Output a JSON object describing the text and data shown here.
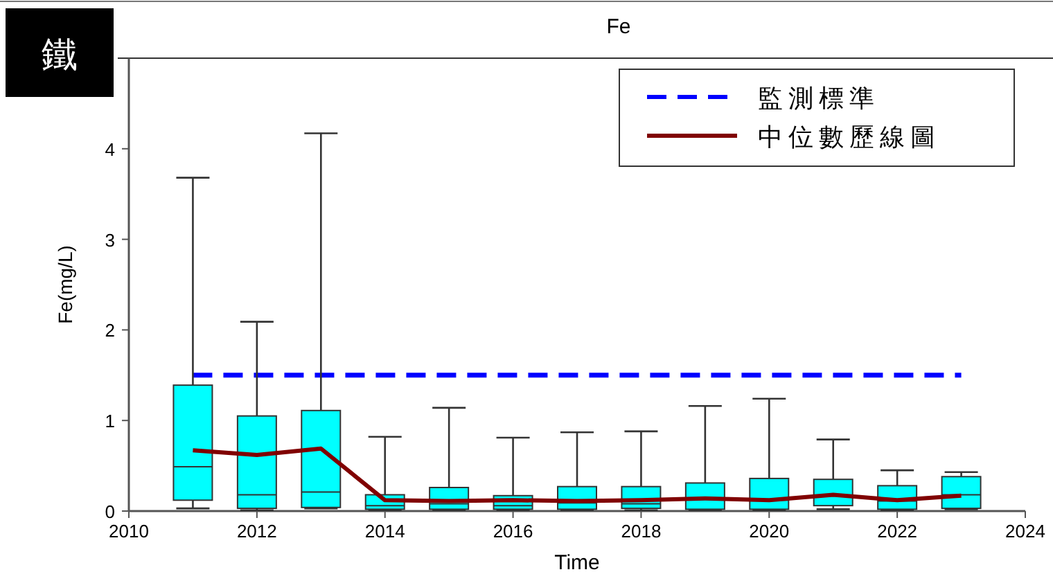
{
  "chart_data": {
    "type": "box",
    "title": "Fe",
    "xlabel": "Time",
    "ylabel": "Fe(mg/L)",
    "annotations": [
      "鐵"
    ],
    "x": [
      2011,
      2012,
      2013,
      2014,
      2015,
      2016,
      2017,
      2018,
      2019,
      2020,
      2021,
      2022,
      2023
    ],
    "xlim": [
      2010,
      2024
    ],
    "xticks": [
      2010,
      2012,
      2014,
      2016,
      2018,
      2020,
      2022,
      2024
    ],
    "ylim": [
      0,
      5
    ],
    "yticks": [
      0,
      1,
      2,
      3,
      4
    ],
    "legend": "top right",
    "grid": false,
    "series": [
      {
        "type": "box",
        "color": "#00ffff",
        "boxes": [
          {
            "low": 0.03,
            "q1": 0.12,
            "median": 0.49,
            "q3": 1.39,
            "high": 3.68
          },
          {
            "low": 0.01,
            "q1": 0.03,
            "median": 0.18,
            "q3": 1.05,
            "high": 2.09
          },
          {
            "low": 0.03,
            "q1": 0.04,
            "median": 0.21,
            "q3": 1.11,
            "high": 4.17
          },
          {
            "low": 0.01,
            "q1": 0.02,
            "median": 0.06,
            "q3": 0.18,
            "high": 0.82
          },
          {
            "low": 0.01,
            "q1": 0.02,
            "median": 0.08,
            "q3": 0.26,
            "high": 1.14
          },
          {
            "low": 0.01,
            "q1": 0.02,
            "median": 0.06,
            "q3": 0.17,
            "high": 0.81
          },
          {
            "low": 0.01,
            "q1": 0.02,
            "median": 0.09,
            "q3": 0.27,
            "high": 0.87
          },
          {
            "low": 0.01,
            "q1": 0.03,
            "median": 0.08,
            "q3": 0.27,
            "high": 0.88
          },
          {
            "low": 0.01,
            "q1": 0.02,
            "median": 0.14,
            "q3": 0.31,
            "high": 1.16
          },
          {
            "low": 0.01,
            "q1": 0.02,
            "median": 0.12,
            "q3": 0.36,
            "high": 1.24
          },
          {
            "low": 0.02,
            "q1": 0.06,
            "median": 0.17,
            "q3": 0.35,
            "high": 0.79
          },
          {
            "low": 0.01,
            "q1": 0.02,
            "median": 0.11,
            "q3": 0.28,
            "high": 0.45
          },
          {
            "low": 0.02,
            "q1": 0.03,
            "median": 0.18,
            "q3": 0.38,
            "high": 0.43
          }
        ]
      },
      {
        "type": "line",
        "name": "中位數歷線圖",
        "color": "#800000",
        "values": [
          0.67,
          0.62,
          0.69,
          0.12,
          0.11,
          0.12,
          0.11,
          0.12,
          0.14,
          0.12,
          0.18,
          0.12,
          0.17
        ]
      }
    ],
    "ref_lines": [
      {
        "axis": "y",
        "value": 1.5,
        "label": "監測標準",
        "color": "#0000ff",
        "line_style": "dashed"
      }
    ]
  }
}
